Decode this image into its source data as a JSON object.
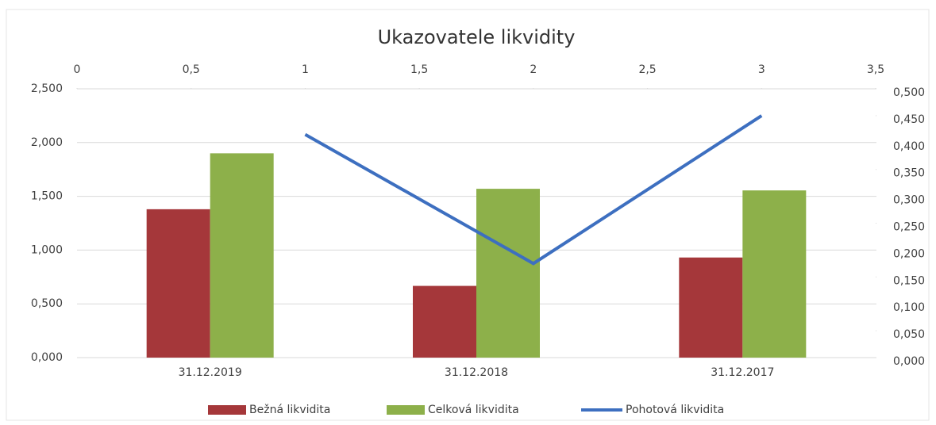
{
  "chart_data": {
    "type": "bar",
    "title": "Ukazovatele likvidity",
    "categories": [
      "31.12.2019",
      "31.12.2018",
      "31.12.2017"
    ],
    "series": [
      {
        "name": "Bežná likvidita",
        "color": "#a5373a",
        "values": [
          1.38,
          0.667,
          0.931
        ]
      },
      {
        "name": "Celková likvidita",
        "color": "#8db04a",
        "values": [
          1.9,
          1.57,
          1.555
        ]
      },
      {
        "name": "Pohotová likvidita",
        "color": "#3d6fc0",
        "type": "line",
        "axis": "y2",
        "x": [
          1,
          2,
          3
        ],
        "values": [
          0.415,
          0.175,
          0.45
        ]
      }
    ],
    "ylim": [
      0,
      2.5
    ],
    "yticks": [
      {
        "value": 0,
        "label": "0,000"
      },
      {
        "value": 0.5,
        "label": "0,500"
      },
      {
        "value": 1,
        "label": "1,000"
      },
      {
        "value": 1.5,
        "label": "1,500"
      },
      {
        "value": 2,
        "label": "2,000"
      },
      {
        "value": 2.5,
        "label": "2,500"
      }
    ],
    "y2lim": [
      0,
      0.5
    ],
    "y2ticks": [
      {
        "value": 0,
        "label": "0,000"
      },
      {
        "value": 0.05,
        "label": "0,050"
      },
      {
        "value": 0.1,
        "label": "0,100"
      },
      {
        "value": 0.15,
        "label": "0,150"
      },
      {
        "value": 0.2,
        "label": "0,200"
      },
      {
        "value": 0.25,
        "label": "0,250"
      },
      {
        "value": 0.3,
        "label": "0,300"
      },
      {
        "value": 0.35,
        "label": "0,350"
      },
      {
        "value": 0.4,
        "label": "0,400"
      },
      {
        "value": 0.45,
        "label": "0,450"
      },
      {
        "value": 0.5,
        "label": "0,500"
      }
    ],
    "x2lim": [
      0,
      3.5
    ],
    "x2ticks": [
      0,
      {
        "value": 0.5,
        "label": "0,5"
      },
      1,
      {
        "value": 1.5,
        "label": "1,5"
      },
      2,
      {
        "value": 2.5,
        "label": "2,5"
      },
      3,
      {
        "value": 3.5,
        "label": "3,5"
      }
    ],
    "grid": true,
    "legend": "bottom"
  }
}
